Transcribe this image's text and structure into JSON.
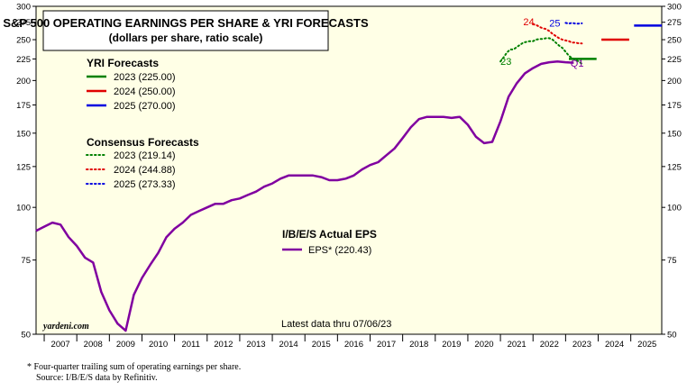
{
  "chart_data": {
    "type": "line",
    "title": "S&P 500 OPERATING EARNINGS PER SHARE & YRI FORECASTS",
    "subtitle": "(dollars per share, ratio scale)",
    "y_scale": "log",
    "ylim": [
      50,
      300
    ],
    "xlim": [
      2006.75,
      2025.95
    ],
    "y_ticks": [
      50,
      75,
      100,
      125,
      150,
      175,
      200,
      225,
      250,
      275,
      300
    ],
    "y_tick_labels": [
      "50",
      "75",
      "100",
      "125",
      "150",
      "175",
      "200",
      "225",
      "250",
      "275",
      "300"
    ],
    "x_tick_labels": [
      "2007",
      "2008",
      "2009",
      "2010",
      "2011",
      "2012",
      "2013",
      "2014",
      "2015",
      "2016",
      "2017",
      "2018",
      "2019",
      "2020",
      "2021",
      "2022",
      "2023",
      "2024",
      "2025"
    ],
    "series": [
      {
        "name": "EPS* (220.43)",
        "group": "I/B/E/S Actual EPS",
        "color": "#8000a0",
        "x": [
          2006.75,
          2007.0,
          2007.25,
          2007.5,
          2007.75,
          2008.0,
          2008.25,
          2008.5,
          2008.75,
          2009.0,
          2009.25,
          2009.5,
          2009.75,
          2010.0,
          2010.25,
          2010.5,
          2010.75,
          2011.0,
          2011.25,
          2011.5,
          2011.75,
          2012.0,
          2012.25,
          2012.5,
          2012.75,
          2013.0,
          2013.25,
          2013.5,
          2013.75,
          2014.0,
          2014.25,
          2014.5,
          2014.75,
          2015.0,
          2015.25,
          2015.5,
          2015.75,
          2016.0,
          2016.25,
          2016.5,
          2016.75,
          2017.0,
          2017.25,
          2017.5,
          2017.75,
          2018.0,
          2018.25,
          2018.5,
          2018.75,
          2019.0,
          2019.25,
          2019.5,
          2019.75,
          2020.0,
          2020.25,
          2020.5,
          2020.75,
          2021.0,
          2021.25,
          2021.5,
          2021.75,
          2022.0,
          2022.25,
          2022.5,
          2022.75,
          2023.0,
          2023.25
        ],
        "values": [
          88,
          90,
          92,
          91,
          85,
          81,
          76,
          74,
          63,
          57,
          53,
          51,
          62,
          68,
          73,
          78,
          85,
          89,
          92,
          96,
          98,
          100,
          102,
          102,
          104,
          105,
          107,
          109,
          112,
          114,
          117,
          119,
          119,
          119,
          119,
          118,
          116,
          116,
          117,
          119,
          123,
          126,
          128,
          133,
          138,
          146,
          155,
          162,
          164,
          164,
          164,
          163,
          164,
          157,
          147,
          142,
          143,
          160,
          183,
          197,
          208,
          214,
          219,
          221,
          222,
          221,
          220.43
        ]
      },
      {
        "name": "Consensus 2023 (219.14)",
        "group": "Consensus Forecasts",
        "color": "#008000",
        "dotted": true,
        "x": [
          2021.0,
          2021.1,
          2021.2,
          2021.3,
          2021.4,
          2021.5,
          2021.6,
          2021.7,
          2021.8,
          2021.9,
          2022.0,
          2022.1,
          2022.2,
          2022.3,
          2022.4,
          2022.5,
          2022.6,
          2022.7,
          2022.8,
          2022.9,
          2023.0,
          2023.1,
          2023.2,
          2023.3,
          2023.4,
          2023.5
        ],
        "values": [
          222,
          227,
          233,
          237,
          237,
          240,
          243,
          246,
          247,
          248,
          248,
          250,
          251,
          251,
          252,
          252,
          250,
          246,
          242,
          239,
          234,
          229,
          226,
          224,
          222,
          219.14
        ]
      },
      {
        "name": "Consensus 2024 (244.88)",
        "group": "Consensus Forecasts",
        "color": "#e00000",
        "dotted": true,
        "x": [
          2022.0,
          2022.1,
          2022.2,
          2022.3,
          2022.4,
          2022.5,
          2022.6,
          2022.7,
          2022.8,
          2022.9,
          2023.0,
          2023.1,
          2023.2,
          2023.3,
          2023.4,
          2023.5
        ],
        "values": [
          272,
          271,
          268,
          266,
          265,
          262,
          258,
          255,
          252,
          250,
          249,
          248,
          246,
          246,
          245,
          244.88
        ]
      },
      {
        "name": "Consensus 2025 (273.33)",
        "group": "Consensus Forecasts",
        "color": "#0000e0",
        "dotted": true,
        "x": [
          2023.0,
          2023.1,
          2023.2,
          2023.3,
          2023.4,
          2023.5
        ],
        "values": [
          274,
          273,
          274,
          273,
          273,
          273.33
        ]
      },
      {
        "name": "YRI 2023 (225.00)",
        "group": "YRI Forecasts",
        "color": "#008000",
        "x": [
          2023.1,
          2023.95
        ],
        "values": [
          225,
          225
        ]
      },
      {
        "name": "YRI 2024 (250.00)",
        "group": "YRI Forecasts",
        "color": "#e00000",
        "x": [
          2024.1,
          2024.95
        ],
        "values": [
          250,
          250
        ]
      },
      {
        "name": "YRI 2025 (270.00)",
        "group": "YRI Forecasts",
        "color": "#0000e0",
        "x": [
          2025.1,
          2025.95
        ],
        "values": [
          270,
          270
        ]
      }
    ],
    "annotations": [
      {
        "text": "23",
        "x": 2021.0,
        "y": 222,
        "color": "#008000"
      },
      {
        "text": "24",
        "x": 2021.7,
        "y": 276,
        "color": "#e00000"
      },
      {
        "text": "25",
        "x": 2022.5,
        "y": 274,
        "color": "#0000e0"
      },
      {
        "text": "Q1",
        "x": 2023.15,
        "y": 220,
        "color": "#8000a0"
      }
    ],
    "legend": {
      "yri_title": "YRI Forecasts",
      "yri_items": [
        "2023 (225.00)",
        "2024 (250.00)",
        "2025 (270.00)"
      ],
      "consensus_title": "Consensus Forecasts",
      "consensus_items": [
        "2023 (219.14)",
        "2024 (244.88)",
        "2025 (273.33)"
      ],
      "actual_title": "I/B/E/S Actual EPS",
      "actual_item": "EPS* (220.43)"
    },
    "source_tag": "yardeni.com",
    "latest_data": "Latest data thru 07/06/23",
    "plot_background": "#ffffe6"
  },
  "footnotes": {
    "line1": "*   Four-quarter trailing sum of operating earnings per share.",
    "line2": "Source: I/B/E/S data by Refinitiv."
  }
}
